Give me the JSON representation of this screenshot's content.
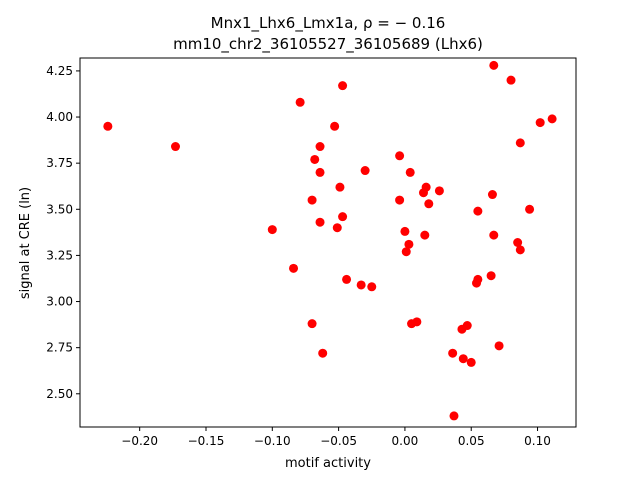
{
  "chart_data": {
    "type": "scatter",
    "title_line1": "Mnx1_Lhx6_Lmx1a, ρ = − 0.16",
    "title_line2": "mm10_chr2_36105527_36105689 (Lhx6)",
    "xlabel": "motif activity",
    "ylabel": "signal at CRE (ln)",
    "xlim": [
      -0.245,
      0.129
    ],
    "ylim": [
      2.32,
      4.32
    ],
    "xticks": [
      -0.2,
      -0.15,
      -0.1,
      -0.05,
      0.0,
      0.05,
      0.1
    ],
    "xtick_labels": [
      "−0.20",
      "−0.15",
      "−0.10",
      "−0.05",
      "0.00",
      "0.05",
      "0.10"
    ],
    "yticks": [
      2.5,
      2.75,
      3.0,
      3.25,
      3.5,
      3.75,
      4.0,
      4.25
    ],
    "ytick_labels": [
      "2.50",
      "2.75",
      "3.00",
      "3.25",
      "3.50",
      "3.75",
      "4.00",
      "4.25"
    ],
    "marker_color": "#ff0000",
    "grid": false,
    "points": [
      {
        "x": -0.224,
        "y": 3.95
      },
      {
        "x": -0.173,
        "y": 3.84
      },
      {
        "x": -0.1,
        "y": 3.39
      },
      {
        "x": -0.084,
        "y": 3.18
      },
      {
        "x": -0.079,
        "y": 4.08
      },
      {
        "x": -0.07,
        "y": 3.55
      },
      {
        "x": -0.07,
        "y": 2.88
      },
      {
        "x": -0.068,
        "y": 3.77
      },
      {
        "x": -0.064,
        "y": 3.84
      },
      {
        "x": -0.064,
        "y": 3.7
      },
      {
        "x": -0.064,
        "y": 3.43
      },
      {
        "x": -0.062,
        "y": 2.72
      },
      {
        "x": -0.053,
        "y": 3.95
      },
      {
        "x": -0.051,
        "y": 3.4
      },
      {
        "x": -0.049,
        "y": 3.62
      },
      {
        "x": -0.047,
        "y": 4.17
      },
      {
        "x": -0.047,
        "y": 3.46
      },
      {
        "x": -0.044,
        "y": 3.12
      },
      {
        "x": -0.033,
        "y": 3.09
      },
      {
        "x": -0.03,
        "y": 3.71
      },
      {
        "x": -0.025,
        "y": 3.08
      },
      {
        "x": -0.004,
        "y": 3.79
      },
      {
        "x": -0.004,
        "y": 3.55
      },
      {
        "x": 0.0,
        "y": 3.38
      },
      {
        "x": 0.001,
        "y": 3.27
      },
      {
        "x": 0.003,
        "y": 3.31
      },
      {
        "x": 0.004,
        "y": 3.7
      },
      {
        "x": 0.005,
        "y": 2.88
      },
      {
        "x": 0.009,
        "y": 2.89
      },
      {
        "x": 0.014,
        "y": 3.59
      },
      {
        "x": 0.015,
        "y": 3.36
      },
      {
        "x": 0.016,
        "y": 3.62
      },
      {
        "x": 0.018,
        "y": 3.53
      },
      {
        "x": 0.026,
        "y": 3.6
      },
      {
        "x": 0.036,
        "y": 2.72
      },
      {
        "x": 0.037,
        "y": 2.38
      },
      {
        "x": 0.043,
        "y": 2.85
      },
      {
        "x": 0.044,
        "y": 2.69
      },
      {
        "x": 0.047,
        "y": 2.87
      },
      {
        "x": 0.05,
        "y": 2.67
      },
      {
        "x": 0.054,
        "y": 3.1
      },
      {
        "x": 0.055,
        "y": 3.12
      },
      {
        "x": 0.055,
        "y": 3.49
      },
      {
        "x": 0.065,
        "y": 3.14
      },
      {
        "x": 0.066,
        "y": 3.58
      },
      {
        "x": 0.067,
        "y": 4.28
      },
      {
        "x": 0.067,
        "y": 3.36
      },
      {
        "x": 0.071,
        "y": 2.76
      },
      {
        "x": 0.08,
        "y": 4.2
      },
      {
        "x": 0.085,
        "y": 3.32
      },
      {
        "x": 0.087,
        "y": 3.28
      },
      {
        "x": 0.087,
        "y": 3.86
      },
      {
        "x": 0.094,
        "y": 3.5
      },
      {
        "x": 0.102,
        "y": 3.97
      },
      {
        "x": 0.111,
        "y": 3.99
      }
    ]
  }
}
